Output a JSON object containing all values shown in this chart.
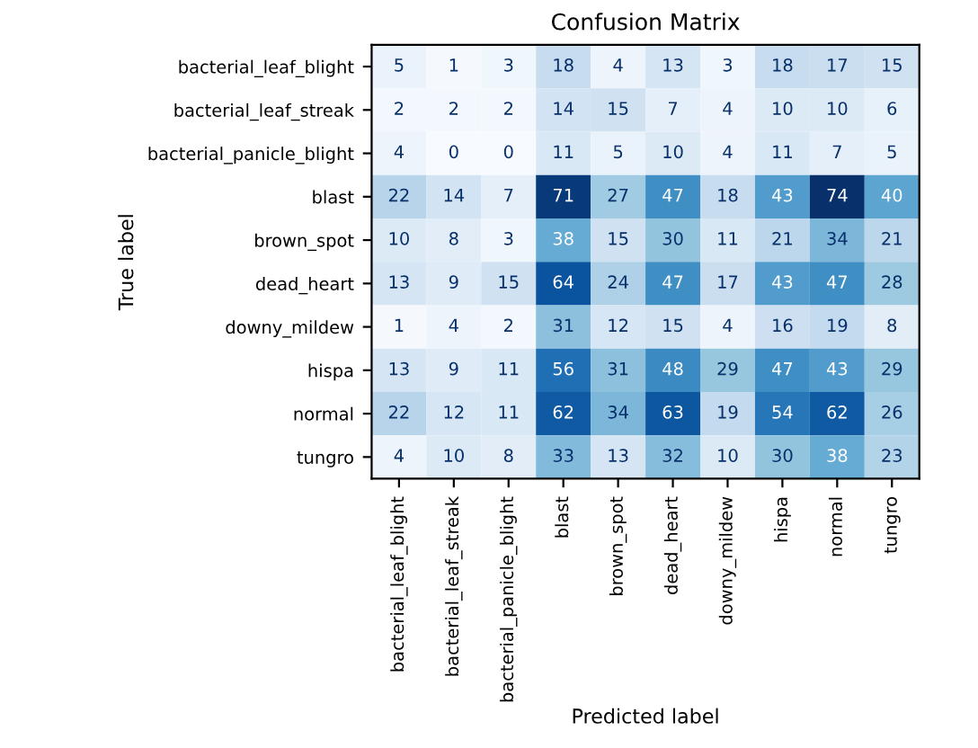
{
  "chart_data": {
    "type": "heatmap",
    "title": "Confusion Matrix",
    "xlabel": "Predicted label",
    "ylabel": "True label",
    "categories": [
      "bacterial_leaf_blight",
      "bacterial_leaf_streak",
      "bacterial_panicle_blight",
      "blast",
      "brown_spot",
      "dead_heart",
      "downy_mildew",
      "hispa",
      "normal",
      "tungro"
    ],
    "y_categories": [
      "bacterial_leaf_blight",
      "bacterial_leaf_streak",
      "bacterial_panicle_blight",
      "blast",
      "brown_spot",
      "dead_heart",
      "downy_mildew",
      "hispa",
      "normal",
      "tungro"
    ],
    "cells": [
      [
        5,
        1,
        3,
        18,
        4,
        13,
        3,
        18,
        17,
        15
      ],
      [
        2,
        2,
        2,
        14,
        15,
        7,
        4,
        10,
        10,
        6
      ],
      [
        4,
        0,
        0,
        11,
        5,
        10,
        4,
        11,
        7,
        5
      ],
      [
        22,
        14,
        7,
        71,
        27,
        47,
        18,
        43,
        74,
        40
      ],
      [
        10,
        8,
        3,
        38,
        15,
        30,
        11,
        21,
        34,
        21
      ],
      [
        13,
        9,
        15,
        64,
        24,
        47,
        17,
        43,
        47,
        28
      ],
      [
        1,
        4,
        2,
        31,
        12,
        15,
        4,
        16,
        19,
        8
      ],
      [
        13,
        9,
        11,
        56,
        31,
        48,
        29,
        47,
        43,
        29
      ],
      [
        22,
        12,
        11,
        62,
        34,
        63,
        19,
        54,
        62,
        26
      ],
      [
        4,
        10,
        8,
        33,
        13,
        32,
        10,
        30,
        38,
        23
      ]
    ],
    "data_labels": true
  }
}
